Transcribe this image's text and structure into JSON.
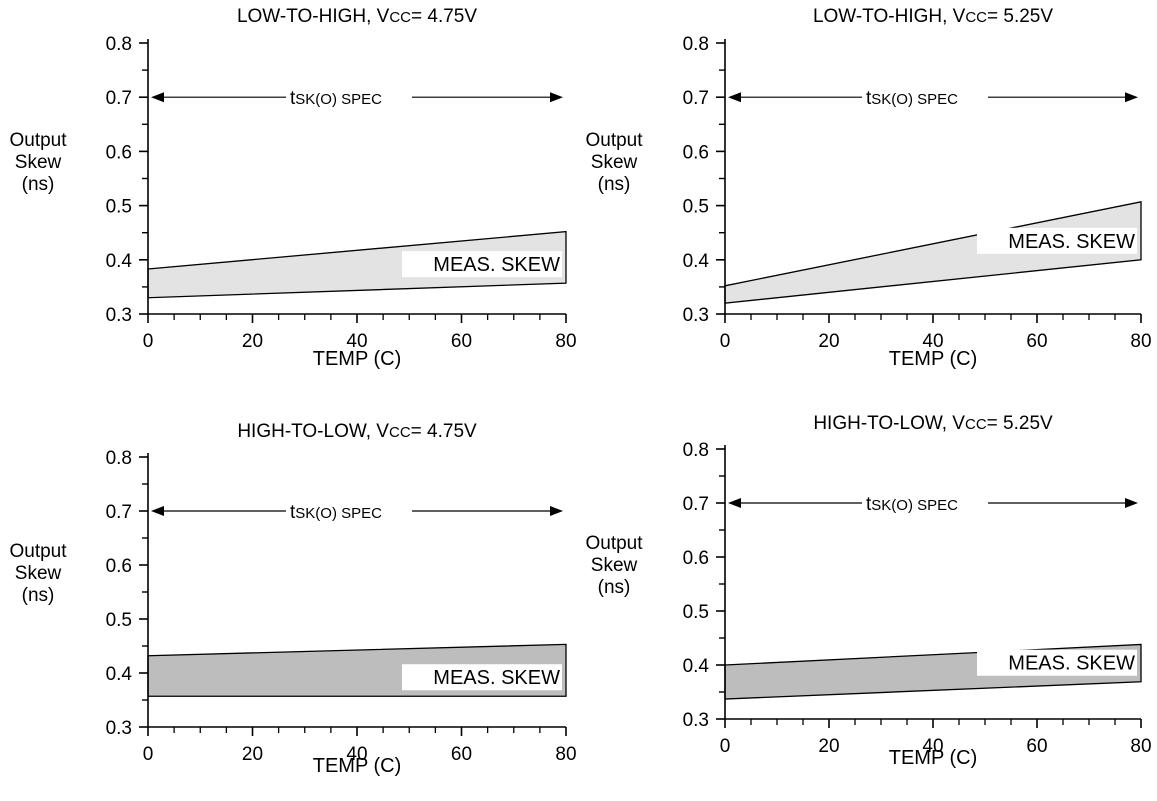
{
  "chart_data": [
    {
      "type": "area",
      "title_main": "LOW-TO-HIGH, V",
      "title_sub": "CC",
      "title_tail": "= 4.75V",
      "ylabel": [
        "Output",
        "Skew",
        "(ns)"
      ],
      "xlabel": "TEMP (C)",
      "xlim": [
        0,
        80
      ],
      "ylim": [
        0.3,
        0.8
      ],
      "x_ticks": [
        "0",
        "20",
        "40",
        "60",
        "80"
      ],
      "y_ticks": [
        "0.3",
        "0.4",
        "0.5",
        "0.6",
        "0.7",
        "0.8"
      ],
      "spec": {
        "value": 0.7,
        "label_main": "t",
        "label_sub": "SK(O) SPEC"
      },
      "band": {
        "label": "MEAS. SKEW",
        "x": [
          0,
          80
        ],
        "upper": [
          0.383,
          0.452
        ],
        "lower": [
          0.33,
          0.357
        ],
        "fill": "#e3e3e3"
      }
    },
    {
      "type": "area",
      "title_main": "LOW-TO-HIGH, V",
      "title_sub": "CC",
      "title_tail": "= 5.25V",
      "ylabel": [
        "Output",
        "Skew",
        "(ns)"
      ],
      "xlabel": "TEMP (C)",
      "xlim": [
        0,
        80
      ],
      "ylim": [
        0.3,
        0.8
      ],
      "x_ticks": [
        "0",
        "20",
        "40",
        "60",
        "80"
      ],
      "y_ticks": [
        "0.3",
        "0.4",
        "0.5",
        "0.6",
        "0.7",
        "0.8"
      ],
      "spec": {
        "value": 0.7,
        "label_main": "t",
        "label_sub": "SK(O) SPEC"
      },
      "band": {
        "label": "MEAS. SKEW",
        "x": [
          0,
          80
        ],
        "upper": [
          0.352,
          0.507
        ],
        "lower": [
          0.32,
          0.4
        ],
        "fill": "#e3e3e3"
      }
    },
    {
      "type": "area",
      "title_main": "HIGH-TO-LOW, V",
      "title_sub": "CC",
      "title_tail": "= 4.75V",
      "ylabel": [
        "Output",
        "Skew",
        "(ns)"
      ],
      "xlabel": "TEMP (C)",
      "xlim": [
        0,
        80
      ],
      "ylim": [
        0.3,
        0.8
      ],
      "x_ticks": [
        "0",
        "20",
        "40",
        "60",
        "80"
      ],
      "y_ticks": [
        "0.3",
        "0.4",
        "0.5",
        "0.6",
        "0.7",
        "0.8"
      ],
      "spec": {
        "value": 0.7,
        "label_main": "t",
        "label_sub": "SK(O) SPEC"
      },
      "band": {
        "label": "MEAS. SKEW",
        "x": [
          0,
          80
        ],
        "upper": [
          0.432,
          0.453
        ],
        "lower": [
          0.357,
          0.357
        ],
        "fill": "#bdbdbd"
      }
    },
    {
      "type": "area",
      "title_main": "HIGH-TO-LOW, V",
      "title_sub": "CC",
      "title_tail": "= 5.25V",
      "ylabel": [
        "Output",
        "Skew",
        "(ns)"
      ],
      "xlabel": "TEMP (C)",
      "xlim": [
        0,
        80
      ],
      "ylim": [
        0.3,
        0.8
      ],
      "x_ticks": [
        "0",
        "20",
        "40",
        "60",
        "80"
      ],
      "y_ticks": [
        "0.3",
        "0.4",
        "0.5",
        "0.6",
        "0.7",
        "0.8"
      ],
      "spec": {
        "value": 0.7,
        "label_main": "t",
        "label_sub": "SK(O) SPEC"
      },
      "band": {
        "label": "MEAS. SKEW",
        "x": [
          0,
          80
        ],
        "upper": [
          0.4,
          0.438
        ],
        "lower": [
          0.337,
          0.369
        ],
        "fill": "#bdbdbd"
      }
    }
  ]
}
